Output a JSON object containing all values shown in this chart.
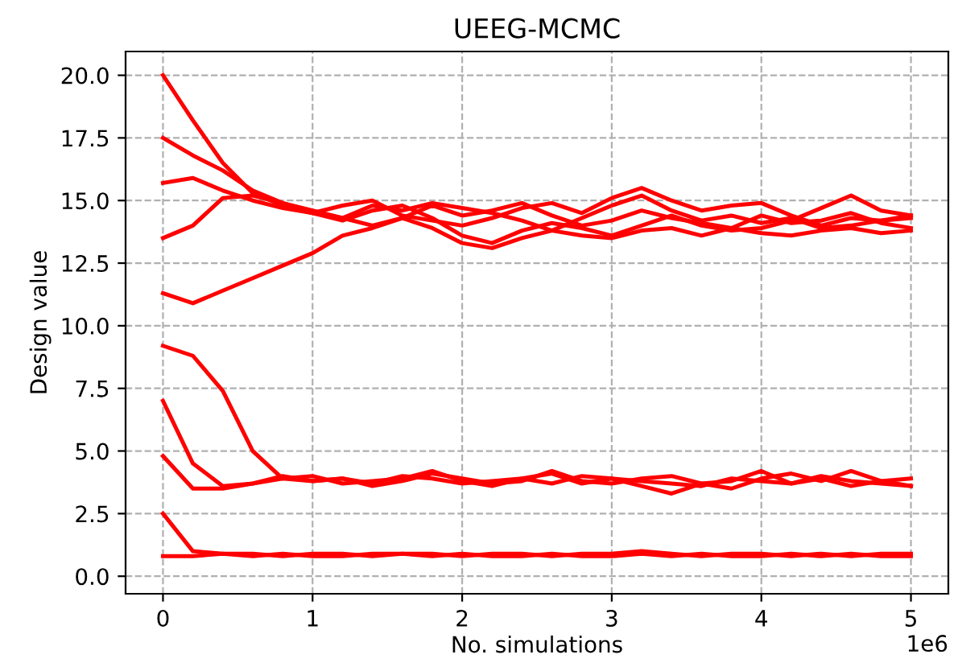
{
  "chart_data": {
    "type": "line",
    "title": "UEEG-MCMC",
    "xlabel": "No. simulations",
    "ylabel": "Design value",
    "annotations": [
      "1e6"
    ],
    "x": [
      0,
      0.2,
      0.4,
      0.6,
      0.8,
      1,
      1.2,
      1.4,
      1.6,
      1.8,
      2,
      2.2,
      2.4,
      2.6,
      2.8,
      3,
      3.2,
      3.4,
      3.6,
      3.8,
      4,
      4.2,
      4.4,
      4.6,
      4.8,
      5
    ],
    "xlim": [
      -0.25,
      5.25
    ],
    "ylim": [
      -0.7,
      20.95
    ],
    "xticks": [
      0,
      1,
      2,
      3,
      4,
      5
    ],
    "yticks": [
      {
        "value": 0,
        "label": "0.0"
      },
      {
        "value": 2.5,
        "label": "2.5"
      },
      {
        "value": 5,
        "label": "5.0"
      },
      {
        "value": 7.5,
        "label": "7.5"
      },
      {
        "value": 10,
        "label": "10.0"
      },
      {
        "value": 12.5,
        "label": "12.5"
      },
      {
        "value": 15,
        "label": "15.0"
      },
      {
        "value": 17.5,
        "label": "17.5"
      },
      {
        "value": 20,
        "label": "20.0"
      }
    ],
    "grid": true,
    "line_style": "solid",
    "marker": "none",
    "series": [
      {
        "color": "#ff0000",
        "values": [
          20,
          18.2,
          16.5,
          15.3,
          14.8,
          14.5,
          14.3,
          14.8,
          14.6,
          14.9,
          14.7,
          14.5,
          14.2,
          13.8,
          14.3,
          14.8,
          15.2,
          14.6,
          14.2,
          14.4,
          14.1,
          14.3,
          13.9,
          14.0,
          14.2,
          14.3
        ]
      },
      {
        "color": "#ff0000",
        "values": [
          17.5,
          16.8,
          16.2,
          15.4,
          14.9,
          14.6,
          14.3,
          14.0,
          14.3,
          14.8,
          14.4,
          14.6,
          14.9,
          14.4,
          14.0,
          14.2,
          14.6,
          14.3,
          14.1,
          13.9,
          14.4,
          14.1,
          14.2,
          14.5,
          14.1,
          13.9
        ]
      },
      {
        "color": "#ff0000",
        "values": [
          15.7,
          15.9,
          15.4,
          15.0,
          14.7,
          14.5,
          14.8,
          15.0,
          14.4,
          14.2,
          14.0,
          14.3,
          14.7,
          14.9,
          14.5,
          15.1,
          15.5,
          15.0,
          14.6,
          14.8,
          14.9,
          14.4,
          14.0,
          14.3,
          14.2,
          14.4
        ]
      },
      {
        "color": "#ff0000",
        "values": [
          13.5,
          14.0,
          15.1,
          15.2,
          14.9,
          14.5,
          14.2,
          14.6,
          14.8,
          14.3,
          13.6,
          13.3,
          13.8,
          14.1,
          13.9,
          13.6,
          14.0,
          14.4,
          14.0,
          13.8,
          13.9,
          14.2,
          14.7,
          15.2,
          14.6,
          14.4
        ]
      },
      {
        "color": "#ff0000",
        "values": [
          11.3,
          10.9,
          11.4,
          11.9,
          12.4,
          12.9,
          13.6,
          13.9,
          14.3,
          13.9,
          13.3,
          13.1,
          13.5,
          13.8,
          13.6,
          13.5,
          13.8,
          13.9,
          13.6,
          13.9,
          13.7,
          13.6,
          13.8,
          13.9,
          13.7,
          13.8
        ]
      },
      {
        "color": "#ff0000",
        "values": [
          9.2,
          8.8,
          7.4,
          5.0,
          3.9,
          3.8,
          3.9,
          3.7,
          4.0,
          3.9,
          3.7,
          3.8,
          3.9,
          4.1,
          3.7,
          3.9,
          3.8,
          3.7,
          3.6,
          3.9,
          3.8,
          3.7,
          4.0,
          3.8,
          3.7,
          3.6
        ]
      },
      {
        "color": "#ff0000",
        "values": [
          7.0,
          4.5,
          3.6,
          3.7,
          3.9,
          4.0,
          3.7,
          3.8,
          3.9,
          4.2,
          3.8,
          3.6,
          3.9,
          3.7,
          4.0,
          3.9,
          3.6,
          3.3,
          3.7,
          3.5,
          3.9,
          4.1,
          3.8,
          4.2,
          3.8,
          3.9
        ]
      },
      {
        "color": "#ff0000",
        "values": [
          4.8,
          3.5,
          3.5,
          3.7,
          4.0,
          3.8,
          3.9,
          3.6,
          3.8,
          4.1,
          3.9,
          3.7,
          3.8,
          4.2,
          3.8,
          3.7,
          3.9,
          4.0,
          3.7,
          3.8,
          4.2,
          3.7,
          3.9,
          3.6,
          3.8,
          3.6
        ]
      },
      {
        "color": "#ff0000",
        "values": [
          2.5,
          1.0,
          0.9,
          0.9,
          0.8,
          0.9,
          0.9,
          0.8,
          0.9,
          0.9,
          0.8,
          0.9,
          0.9,
          0.8,
          0.9,
          0.9,
          1.0,
          0.9,
          0.8,
          0.9,
          0.9,
          0.8,
          0.9,
          0.8,
          0.9,
          0.9
        ]
      },
      {
        "color": "#ff0000",
        "values": [
          0.8,
          0.8,
          0.9,
          0.8,
          0.9,
          0.8,
          0.8,
          0.9,
          0.9,
          0.8,
          0.9,
          0.8,
          0.8,
          0.9,
          0.8,
          0.8,
          0.9,
          0.8,
          0.9,
          0.8,
          0.8,
          0.9,
          0.8,
          0.9,
          0.8,
          0.8
        ]
      }
    ]
  }
}
